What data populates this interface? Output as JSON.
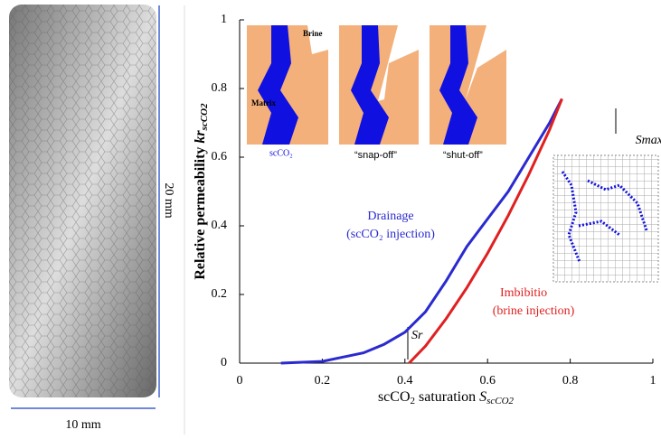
{
  "chart_data": {
    "type": "line",
    "ylabel": {
      "main": "Relative permeability ",
      "kr": "kr",
      "sub": "scCO2"
    },
    "xlabel": {
      "main": "scCO",
      "sub1": "2",
      "mid": " saturation ",
      "s": "S",
      "sub2": "scCO2"
    },
    "xlim": [
      0,
      1
    ],
    "ylim": [
      0,
      1
    ],
    "xticks": [
      0,
      0.2,
      0.4,
      0.6,
      0.8,
      1
    ],
    "yticks": [
      0,
      0.2,
      0.4,
      0.6,
      0.8,
      1
    ],
    "series": [
      {
        "name": "Drainage",
        "color": "#2a2ad0",
        "x": [
          0.1,
          0.2,
          0.3,
          0.35,
          0.4,
          0.45,
          0.5,
          0.55,
          0.6,
          0.65,
          0.7,
          0.75,
          0.78
        ],
        "values": [
          0,
          0.005,
          0.03,
          0.055,
          0.09,
          0.15,
          0.24,
          0.34,
          0.42,
          0.5,
          0.6,
          0.7,
          0.77
        ]
      },
      {
        "name": "Imbibition",
        "color": "#e02020",
        "x": [
          0.41,
          0.45,
          0.5,
          0.55,
          0.6,
          0.65,
          0.7,
          0.75,
          0.78
        ],
        "values": [
          0,
          0.05,
          0.13,
          0.22,
          0.32,
          0.43,
          0.55,
          0.68,
          0.77
        ]
      }
    ],
    "annotations": {
      "drainage": "Drainage",
      "drainage_sub": "(scCO₂ injection)",
      "imbibition": "Imbibitio",
      "imbibition_sub": "(brine injection)",
      "sr": "Sr",
      "smax": "Smax",
      "brine": "Brine",
      "matrix": "Matrix",
      "scco2": "scCO₂",
      "snap": "“snap-off”",
      "shut": "“shut-off”"
    },
    "scale": {
      "height": "20 mm",
      "width": "10 mm"
    }
  }
}
